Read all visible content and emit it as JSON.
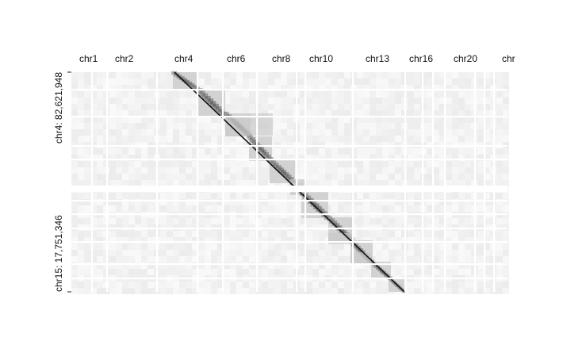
{
  "chart_data": {
    "type": "heatmap",
    "title": "",
    "x_chromosome_labels": [
      "chr1",
      "chr2",
      "chr4",
      "chr6",
      "chr8",
      "chr10",
      "chr13",
      "chr16",
      "chr20",
      "chr"
    ],
    "y_tick_labels": [
      "chr4: 82,621,948",
      "chr15: 17,751,346"
    ],
    "y_tick_positions_bp": [
      82621948,
      17751346
    ],
    "grid": false,
    "legend": "none",
    "colors": {
      "background": "#ffffff",
      "low": "#f2f2f2",
      "high": "#111111",
      "separator": "#ffffff"
    }
  }
}
